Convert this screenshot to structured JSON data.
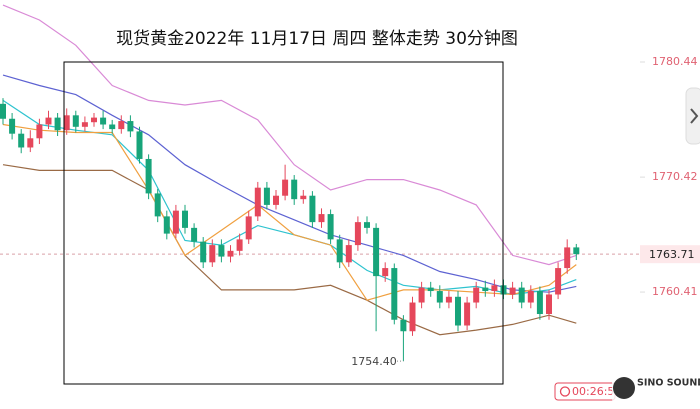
{
  "chart_data": {
    "type": "candlestick",
    "title": "现货黄金2022年 11月17日 周四 整体走势  30分钟图",
    "up_color": "#e5475b",
    "down_color": "#17a47a",
    "open": [
      1776.8,
      1775.5,
      1774.2,
      1773.0,
      1773.8,
      1775.0,
      1775.6,
      1774.5,
      1775.8,
      1774.8,
      1775.2,
      1775.6,
      1775.0,
      1774.6,
      1775.3,
      1774.4,
      1772.0,
      1769.0,
      1767.0,
      1765.5,
      1767.5,
      1766.0,
      1764.8,
      1763.0,
      1764.5,
      1763.5,
      1764.0,
      1765.0,
      1767.0,
      1769.5,
      1768.0,
      1768.8,
      1770.2,
      1768.5,
      1768.8,
      1766.5,
      1767.2,
      1765.0,
      1763.0,
      1764.5,
      1766.5,
      1766.0,
      1761.8,
      1762.5,
      1758.0,
      1757.0,
      1759.5,
      1760.8,
      1760.5,
      1759.5,
      1760.0,
      1757.5,
      1759.5,
      1760.8,
      1760.5,
      1761.0,
      1760.2,
      1760.8,
      1759.5,
      1760.5,
      1758.5,
      1760.2,
      1762.5,
      1764.3
    ],
    "high": [
      1777.3,
      1776.0,
      1774.6,
      1774.5,
      1775.5,
      1776.2,
      1776.0,
      1776.4,
      1776.2,
      1775.7,
      1776.0,
      1776.2,
      1775.4,
      1775.8,
      1775.8,
      1774.8,
      1772.4,
      1769.4,
      1767.5,
      1768.0,
      1768.0,
      1766.4,
      1765.2,
      1765.0,
      1765.0,
      1764.5,
      1765.5,
      1767.5,
      1770.0,
      1770.0,
      1769.3,
      1771.5,
      1770.6,
      1769.3,
      1769.2,
      1767.7,
      1767.6,
      1765.4,
      1765.0,
      1767.0,
      1767.0,
      1766.4,
      1763.0,
      1762.9,
      1758.4,
      1760.0,
      1761.3,
      1761.3,
      1761.0,
      1760.5,
      1760.5,
      1760.0,
      1761.3,
      1761.4,
      1761.5,
      1761.5,
      1761.3,
      1761.3,
      1761.0,
      1760.9,
      1760.6,
      1763.0,
      1765.0,
      1764.6
    ],
    "low": [
      1775.0,
      1773.7,
      1772.5,
      1772.6,
      1773.3,
      1774.6,
      1774.0,
      1774.1,
      1774.3,
      1774.4,
      1774.8,
      1774.6,
      1774.2,
      1774.2,
      1773.9,
      1771.6,
      1768.5,
      1766.5,
      1765.0,
      1765.1,
      1765.5,
      1764.3,
      1762.5,
      1762.6,
      1763.0,
      1763.0,
      1763.6,
      1764.6,
      1766.6,
      1767.6,
      1767.6,
      1768.4,
      1768.0,
      1768.1,
      1766.0,
      1766.0,
      1764.6,
      1762.5,
      1762.6,
      1764.0,
      1765.5,
      1757.0,
      1761.3,
      1757.6,
      1754.4,
      1756.6,
      1759.0,
      1760.0,
      1759.0,
      1759.0,
      1757.0,
      1757.1,
      1759.0,
      1760.0,
      1760.0,
      1759.8,
      1759.8,
      1759.0,
      1759.0,
      1758.0,
      1758.0,
      1759.8,
      1762.0,
      1763.2
    ],
    "close": [
      1775.5,
      1774.2,
      1773.0,
      1773.8,
      1775.0,
      1775.6,
      1774.5,
      1775.8,
      1774.8,
      1775.2,
      1775.6,
      1775.0,
      1774.6,
      1775.3,
      1774.4,
      1772.0,
      1769.0,
      1767.0,
      1765.5,
      1767.5,
      1766.0,
      1764.8,
      1763.0,
      1764.5,
      1763.5,
      1764.0,
      1765.0,
      1767.0,
      1769.5,
      1768.0,
      1768.8,
      1770.2,
      1768.5,
      1768.8,
      1766.5,
      1767.2,
      1765.0,
      1763.0,
      1764.5,
      1766.5,
      1766.0,
      1761.8,
      1762.5,
      1758.0,
      1757.0,
      1759.5,
      1760.8,
      1760.5,
      1759.5,
      1760.0,
      1757.5,
      1759.5,
      1760.8,
      1760.5,
      1761.0,
      1760.2,
      1760.8,
      1759.5,
      1760.5,
      1758.5,
      1760.2,
      1762.5,
      1764.3,
      1763.71
    ],
    "series": [
      {
        "color": "#d98ad6",
        "x": [
          0,
          4,
          8,
          12,
          16,
          20,
          24,
          28,
          32,
          36,
          40,
          44,
          48,
          52,
          56,
          60,
          63
        ],
        "values": [
          1785.4,
          1784.1,
          1781.9,
          1778.4,
          1777.1,
          1776.7,
          1777.1,
          1775.4,
          1771.5,
          1769.3,
          1770.2,
          1770.2,
          1769.3,
          1768.0,
          1763.6,
          1762.8,
          1763.6
        ]
      },
      {
        "color": "#9a6a45",
        "x": [
          0,
          4,
          8,
          12,
          16,
          20,
          24,
          28,
          32,
          36,
          40,
          44,
          48,
          52,
          56,
          60,
          63
        ],
        "values": [
          1771.5,
          1771.0,
          1771.0,
          1771.0,
          1769.3,
          1763.6,
          1760.6,
          1760.6,
          1760.6,
          1761.0,
          1759.7,
          1758.0,
          1756.7,
          1757.1,
          1757.6,
          1758.4,
          1757.7
        ]
      },
      {
        "color": "#5d62d2",
        "x": [
          0,
          4,
          8,
          12,
          16,
          20,
          24,
          28,
          32,
          36,
          40,
          44,
          48,
          52,
          56,
          60,
          63
        ],
        "values": [
          1779.3,
          1778.4,
          1777.6,
          1775.8,
          1774.1,
          1771.5,
          1769.7,
          1768.0,
          1766.7,
          1765.4,
          1764.5,
          1763.6,
          1762.2,
          1761.5,
          1760.6,
          1760.4,
          1760.9
        ]
      },
      {
        "color": "#2ec3cf",
        "x": [
          0,
          4,
          8,
          12,
          16,
          20,
          24,
          28,
          32,
          36,
          40,
          44,
          48,
          52,
          56,
          60,
          63
        ],
        "values": [
          1777.1,
          1775.0,
          1774.5,
          1774.1,
          1771.0,
          1764.9,
          1764.5,
          1766.2,
          1765.4,
          1764.5,
          1762.3,
          1761.0,
          1760.6,
          1760.9,
          1760.2,
          1760.6,
          1761.5
        ]
      },
      {
        "color": "#f0a040",
        "x": [
          0,
          4,
          8,
          12,
          16,
          20,
          24,
          28,
          32,
          36,
          40,
          44,
          48,
          52,
          56,
          60,
          63
        ],
        "values": [
          1775.0,
          1774.5,
          1774.3,
          1774.3,
          1769.3,
          1763.6,
          1765.8,
          1768.0,
          1765.4,
          1764.5,
          1759.7,
          1760.6,
          1760.6,
          1760.4,
          1760.2,
          1761.0,
          1762.8
        ]
      }
    ],
    "ylim": [
      1750.23,
      1785.84
    ],
    "yticks": [
      1760.41,
      1770.42,
      1780.44
    ],
    "last_price": 1763.71,
    "low_label": "1754.40"
  },
  "ui": {
    "timer": "00:26:5",
    "logo": "SINO SOUND"
  }
}
